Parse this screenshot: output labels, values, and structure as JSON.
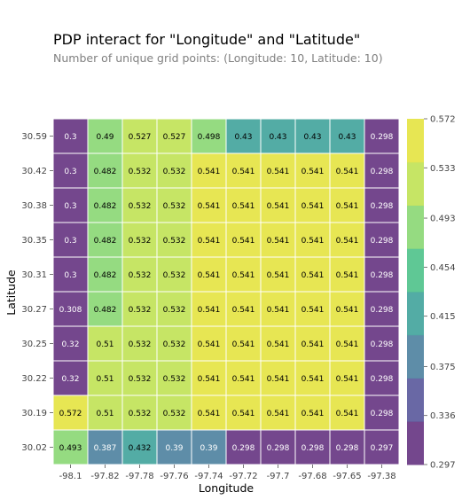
{
  "chart_data": {
    "type": "heatmap",
    "title": "PDP interact for \"Longitude\" and \"Latitude\"",
    "subtitle": "Number of unique grid points: (Longitude: 10, Latitude: 10)",
    "xlabel": "Longitude",
    "ylabel": "Latitude",
    "x": [
      "-98.1",
      "-97.82",
      "-97.78",
      "-97.76",
      "-97.74",
      "-97.72",
      "-97.7",
      "-97.68",
      "-97.65",
      "-97.38"
    ],
    "y": [
      "30.59",
      "30.42",
      "30.38",
      "30.35",
      "30.31",
      "30.27",
      "30.25",
      "30.22",
      "30.19",
      "30.02"
    ],
    "values": [
      [
        "0.3",
        "0.49",
        "0.527",
        "0.527",
        "0.498",
        "0.43",
        "0.43",
        "0.43",
        "0.43",
        "0.298"
      ],
      [
        "0.3",
        "0.482",
        "0.532",
        "0.532",
        "0.541",
        "0.541",
        "0.541",
        "0.541",
        "0.541",
        "0.298"
      ],
      [
        "0.3",
        "0.482",
        "0.532",
        "0.532",
        "0.541",
        "0.541",
        "0.541",
        "0.541",
        "0.541",
        "0.298"
      ],
      [
        "0.3",
        "0.482",
        "0.532",
        "0.532",
        "0.541",
        "0.541",
        "0.541",
        "0.541",
        "0.541",
        "0.298"
      ],
      [
        "0.3",
        "0.482",
        "0.532",
        "0.532",
        "0.541",
        "0.541",
        "0.541",
        "0.541",
        "0.541",
        "0.298"
      ],
      [
        "0.308",
        "0.482",
        "0.532",
        "0.532",
        "0.541",
        "0.541",
        "0.541",
        "0.541",
        "0.541",
        "0.298"
      ],
      [
        "0.32",
        "0.51",
        "0.532",
        "0.532",
        "0.541",
        "0.541",
        "0.541",
        "0.541",
        "0.541",
        "0.298"
      ],
      [
        "0.32",
        "0.51",
        "0.532",
        "0.532",
        "0.541",
        "0.541",
        "0.541",
        "0.541",
        "0.541",
        "0.298"
      ],
      [
        "0.572",
        "0.51",
        "0.532",
        "0.532",
        "0.541",
        "0.541",
        "0.541",
        "0.541",
        "0.541",
        "0.298"
      ],
      [
        "0.493",
        "0.387",
        "0.432",
        "0.39",
        "0.39",
        "0.298",
        "0.298",
        "0.298",
        "0.298",
        "0.297"
      ]
    ],
    "colorbar": {
      "ticks": [
        "0.297",
        "0.336",
        "0.375",
        "0.415",
        "0.454",
        "0.493",
        "0.533",
        "0.572"
      ],
      "colors": [
        "#6d3d87",
        "#6160a0",
        "#5587a3",
        "#4aa8a0",
        "#56c58f",
        "#8fd97a",
        "#c3e45d",
        "#e6e54a"
      ],
      "min": 0.297,
      "max": 0.572
    },
    "grid": false,
    "legend": "colorbar-right"
  }
}
